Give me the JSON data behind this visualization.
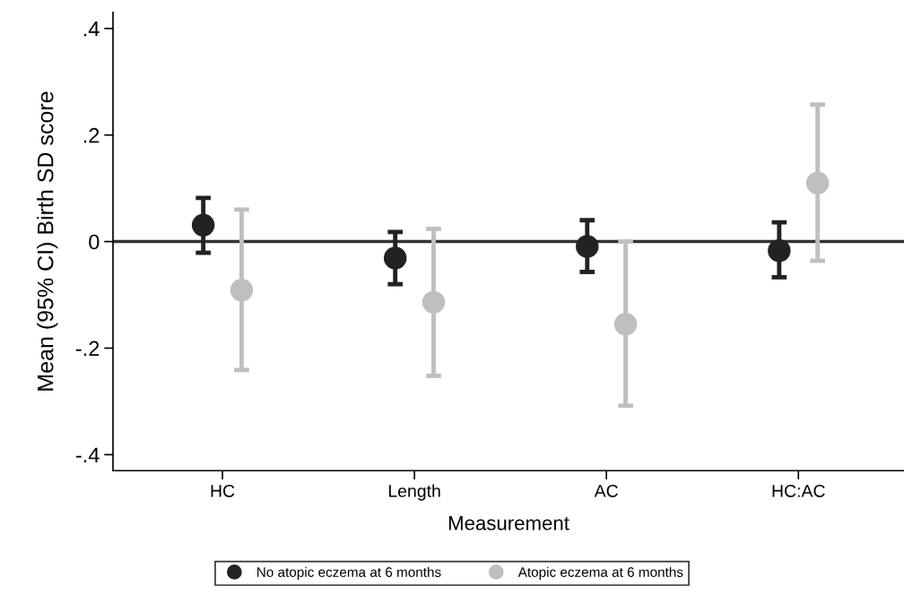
{
  "chart_data": {
    "type": "scatter",
    "xlabel": "Measurement",
    "ylabel": "Mean (95% CI) Birth SD score",
    "categories": [
      "HC",
      "Length",
      "AC",
      "HC:AC"
    ],
    "series": [
      {
        "name": "No atopic eczema at 6 months",
        "color": "#222222",
        "values": [
          0.031,
          -0.031,
          -0.009,
          -0.017
        ],
        "errors": [
          [
            -0.021,
            0.082
          ],
          [
            -0.08,
            0.018
          ],
          [
            -0.057,
            0.04
          ],
          [
            -0.067,
            0.036
          ]
        ]
      },
      {
        "name": "Atopic eczema at 6 months",
        "color": "#bfbfbf",
        "values": [
          -0.091,
          -0.114,
          -0.155,
          0.11
        ],
        "errors": [
          [
            -0.241,
            0.06
          ],
          [
            -0.252,
            0.024
          ],
          [
            -0.308,
            0.0
          ],
          [
            -0.036,
            0.257
          ]
        ]
      }
    ],
    "ylim": [
      -0.43,
      0.43
    ],
    "yticks": [
      {
        "value": -0.4,
        "label": "-.4"
      },
      {
        "value": -0.2,
        "label": "-.2"
      },
      0,
      {
        "value": 0.2,
        "label": ".2"
      },
      {
        "value": 0.4,
        "label": ".4"
      }
    ],
    "ref_lines": [
      {
        "axis": "y",
        "value": 0,
        "color": "#333333"
      }
    ],
    "grid": false,
    "legend": "bottom",
    "marker": "circle"
  }
}
